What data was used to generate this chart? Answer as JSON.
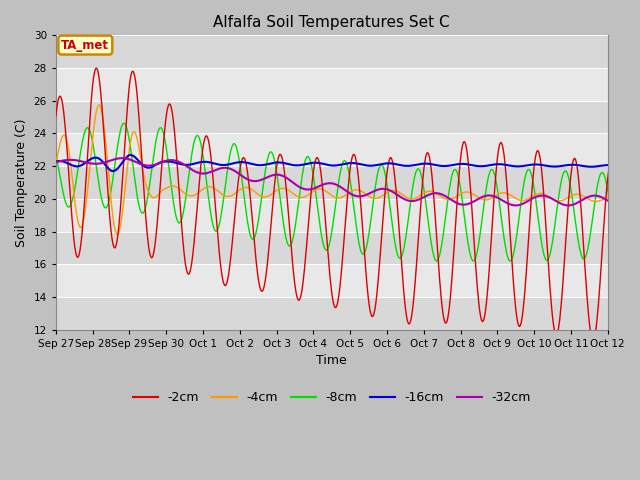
{
  "title": "Alfalfa Soil Temperatures Set C",
  "xlabel": "Time",
  "ylabel": "Soil Temperature (C)",
  "ylim": [
    12,
    30
  ],
  "yticks": [
    12,
    14,
    16,
    18,
    20,
    22,
    24,
    26,
    28,
    30
  ],
  "background_color": "#c8c8c8",
  "plot_bg_stripes": true,
  "annotation_text": "TA_met",
  "annotation_bg": "#ffffcc",
  "annotation_border": "#cc8800",
  "annotation_text_color": "#cc0000",
  "line_colors": {
    "-2cm": "#dd0000",
    "-4cm": "#ff9900",
    "-8cm": "#00dd00",
    "-16cm": "#0000dd",
    "-32cm": "#aa00aa"
  },
  "xtick_labels": [
    "Sep 27",
    "Sep 28",
    "Sep 29",
    "Sep 30",
    "Oct 1",
    "Oct 2",
    "Oct 3",
    "Oct 4",
    "Oct 5",
    "Oct 6",
    "Oct 7",
    "Oct 8",
    "Oct 9",
    "Oct 10",
    "Oct 11",
    "Oct 12"
  ],
  "n_days": 16,
  "samples_per_day": 48
}
